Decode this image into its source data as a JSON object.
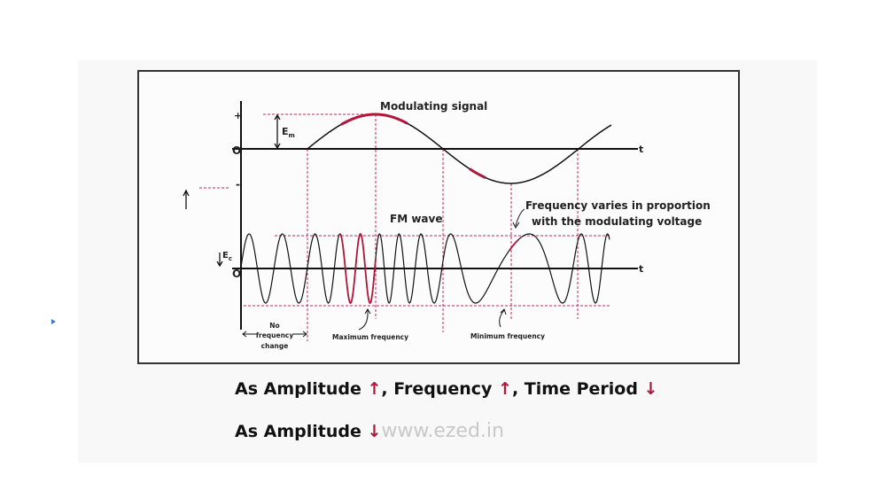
{
  "diagram": {
    "modulating_label": "Modulating signal",
    "em_label": "E",
    "em_sub": "m",
    "ec_label": "E",
    "ec_sub": "c",
    "plus": "+",
    "zero": "O",
    "minus": "-",
    "t_label": "t",
    "fm_label": "FM wave",
    "note_line1": "Frequency varies in proportion",
    "note_line2": "with the modulating voltage",
    "no_change": [
      "No",
      "frequency",
      "change"
    ],
    "max_freq": "Maximum frequency",
    "min_freq": "Minimum frequency",
    "accent_color": "#b0173a"
  },
  "caption": {
    "line1_a": "As Amplitude ",
    "up1": "↑",
    "line1_b": ", Frequency ",
    "up2": "↑",
    "line1_c": ", Time Period ",
    "down1": "↓",
    "line2_a": "As Amplitude ",
    "down2": "↓",
    "watermark": "www.ezed.in"
  }
}
